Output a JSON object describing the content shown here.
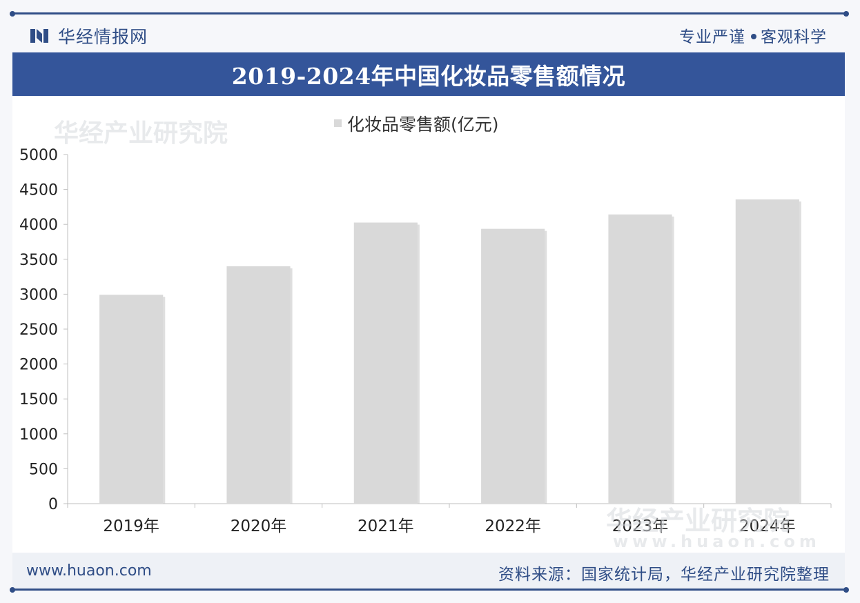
{
  "header": {
    "brand_name": "华经情报网",
    "tagline_left": "专业严谨",
    "tagline_right": "客观科学"
  },
  "title": "2019-2024年中国化妆品零售额情况",
  "watermark_text": "华经产业研究院",
  "watermark_url": "www.huaon.com",
  "footer": {
    "url": "www.huaon.com",
    "source": "资料来源：国家统计局，华经产业研究院整理"
  },
  "colors": {
    "primary": "#34559a",
    "bar": "#d9d9d9"
  },
  "chart_data": {
    "type": "bar",
    "categories": [
      "2019年",
      "2020年",
      "2021年",
      "2022年",
      "2023年",
      "2024年"
    ],
    "series": [
      {
        "name": "化妆品零售额(亿元)",
        "values": [
          2992,
          3400,
          4026,
          3936,
          4142,
          4357
        ]
      }
    ],
    "ylim": [
      0,
      5000
    ],
    "yticks": [
      0,
      500,
      1000,
      1500,
      2000,
      2500,
      3000,
      3500,
      4000,
      4500,
      5000
    ],
    "legend_position": "top-center",
    "grid": false
  }
}
